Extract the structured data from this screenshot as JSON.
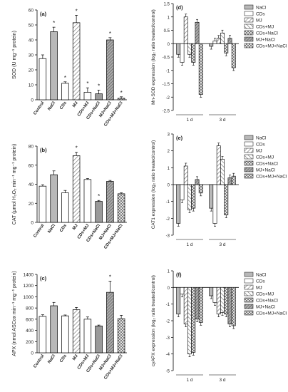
{
  "chart_data": [
    {
      "panel": "(a)",
      "type": "bar",
      "ylabel": "SOD (U mg⁻¹ protein)",
      "ylim": [
        0,
        60
      ],
      "yticks": [
        0,
        10,
        20,
        30,
        40,
        50,
        60
      ],
      "categories": [
        "Control",
        "NaCl",
        "CDs",
        "MJ",
        "CDs+MJ",
        "CDs+NaCl",
        "MJ+NaCl",
        "CDs+MJ+NaCl"
      ],
      "values": [
        27.5,
        45.5,
        11,
        51.5,
        5,
        4,
        40,
        1
      ],
      "errors": [
        2.5,
        3,
        1,
        5,
        3,
        2.5,
        1.5,
        1
      ],
      "marks": [
        "",
        "*",
        "*",
        "*",
        "*",
        "*",
        "*",
        "*"
      ]
    },
    {
      "panel": "(b)",
      "type": "bar",
      "ylabel": "CAT (µmol H₂O₂ min⁻¹ mg⁻¹ protein)",
      "ylim": [
        0,
        80
      ],
      "yticks": [
        0,
        20,
        40,
        60,
        80
      ],
      "categories": [
        "Control",
        "NaCl",
        "CDs",
        "MJ",
        "CDs+MJ",
        "CDs+NaCl",
        "MJ+NaCl",
        "CDs+MJ+NaCl"
      ],
      "values": [
        38,
        50,
        31,
        70,
        45,
        22,
        43,
        30
      ],
      "errors": [
        1.5,
        4,
        2.5,
        3.5,
        1,
        1,
        1,
        1
      ],
      "marks": [
        "",
        "",
        "",
        "*",
        "",
        "*",
        "",
        ""
      ]
    },
    {
      "panel": "(c)",
      "type": "bar",
      "ylabel": "APX (nmol ASCox min⁻¹ mg⁻¹ protein)",
      "ylim": [
        0,
        1400
      ],
      "yticks": [
        0,
        200,
        400,
        600,
        800,
        1000,
        1200,
        1400
      ],
      "categories": [
        "Control",
        "NaCl",
        "CDs",
        "MJ",
        "CDs+MJ",
        "CDs+NaCl",
        "MJ+NaCl",
        "CDs+MJ+NaCl"
      ],
      "values": [
        650,
        840,
        660,
        770,
        600,
        480,
        1080,
        610
      ],
      "errors": [
        30,
        60,
        15,
        40,
        40,
        15,
        200,
        60
      ],
      "marks": [
        "",
        "",
        "",
        "",
        "",
        "",
        "*",
        ""
      ]
    },
    {
      "panel": "(d)",
      "type": "bar",
      "ylabel": "Mn-SOD expression (log₂ ratio treated/control)",
      "ylim": [
        -2.5,
        1.5
      ],
      "yticks": [
        -2.5,
        -2.0,
        -1.5,
        -1.0,
        -0.5,
        0.0,
        0.5,
        1.0,
        1.5
      ],
      "groups": [
        "1 d",
        "3 d"
      ],
      "series": [
        {
          "name": "NaCl",
          "values": [
            -0.4,
            -0.1
          ]
        },
        {
          "name": "CDs",
          "values": [
            -0.7,
            0.1
          ]
        },
        {
          "name": "MJ",
          "values": [
            1.0,
            0.2
          ]
        },
        {
          "name": "CDs+MJ",
          "values": [
            -0.4,
            0.4
          ]
        },
        {
          "name": "CDs+NaCl",
          "values": [
            -0.7,
            -0.35
          ]
        },
        {
          "name": "MJ+NaCl",
          "values": [
            0.8,
            0.2
          ]
        },
        {
          "name": "CDs+MJ+NaCl",
          "values": [
            -1.9,
            -0.9
          ]
        }
      ],
      "legend": "top-right"
    },
    {
      "panel": "(e)",
      "type": "bar",
      "ylabel": "CAT1 expression (log₂ ratio treated/control)",
      "ylim": [
        -3,
        3
      ],
      "yticks": [
        -3,
        -2,
        -1,
        0,
        1,
        2,
        3
      ],
      "groups": [
        "1 d",
        "3 d"
      ],
      "series": [
        {
          "name": "NaCl",
          "values": [
            -2.3,
            -1.4
          ]
        },
        {
          "name": "CDs",
          "values": [
            -0.9,
            -2.3
          ]
        },
        {
          "name": "MJ",
          "values": [
            1.1,
            2.3
          ]
        },
        {
          "name": "CDs+MJ",
          "values": [
            -1.5,
            1.5
          ]
        },
        {
          "name": "CDs+NaCl",
          "values": [
            -1.4,
            -1.8
          ]
        },
        {
          "name": "MJ+NaCl",
          "values": [
            0.3,
            0.4
          ]
        },
        {
          "name": "CDs+MJ+NaCl",
          "values": [
            -0.5,
            0.5
          ]
        }
      ],
      "legend": "top-right"
    },
    {
      "panel": "(f)",
      "type": "bar",
      "ylabel": "cyAPX expression (log₂ ratio treated/control)",
      "ylim": [
        -5,
        1
      ],
      "yticks": [
        -5,
        -4,
        -3,
        -2,
        -1,
        0,
        1
      ],
      "groups": [
        "1 d",
        "3 d"
      ],
      "series": [
        {
          "name": "NaCl",
          "values": [
            -1.6,
            -0.5
          ]
        },
        {
          "name": "CDs",
          "values": [
            -0.4,
            -0.9
          ]
        },
        {
          "name": "MJ",
          "values": [
            -2.2,
            -1.6
          ]
        },
        {
          "name": "CDs+MJ",
          "values": [
            -4.0,
            -1.5
          ]
        },
        {
          "name": "CDs+NaCl",
          "values": [
            -3.9,
            -1.6
          ]
        },
        {
          "name": "MJ+NaCl",
          "values": [
            -1.9,
            -2.2
          ]
        },
        {
          "name": "CDs+MJ+NaCl",
          "values": [
            -2.1,
            -2.3
          ]
        }
      ],
      "legend": "top-right"
    }
  ]
}
